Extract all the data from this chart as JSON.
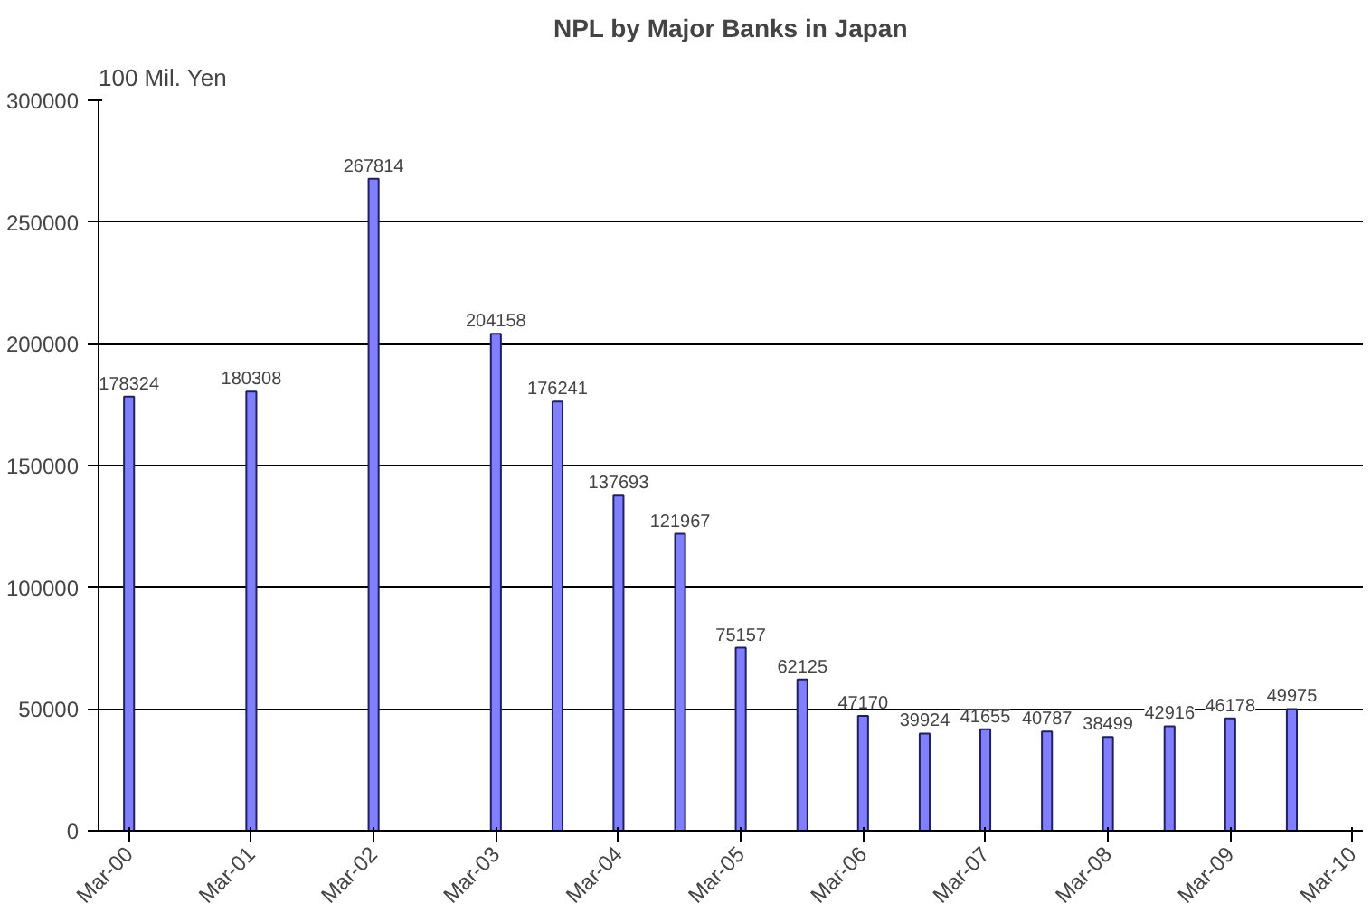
{
  "chart_data": {
    "type": "bar",
    "title": "NPL by Major Banks in Japan",
    "ylabel": "100 Mil. Yen",
    "x": [
      "2000-03",
      "2001-03",
      "2002-03",
      "2003-03",
      "2003-09",
      "2004-03",
      "2004-09",
      "2005-03",
      "2005-09",
      "2006-03",
      "2006-09",
      "2007-03",
      "2007-09",
      "2008-03",
      "2008-09",
      "2009-03",
      "2009-09"
    ],
    "values": [
      178324,
      180308,
      267814,
      204158,
      176241,
      137693,
      121967,
      75157,
      62125,
      47170,
      39924,
      41655,
      40787,
      38499,
      42916,
      46178,
      49975
    ],
    "color": "#8080ff",
    "data_labels": true,
    "grid": "y",
    "ylim": [
      0,
      300000
    ],
    "yticks": [
      0,
      50000,
      100000,
      150000,
      200000,
      250000,
      300000
    ],
    "xlim": [
      "1999-12",
      "2010-04"
    ],
    "xticks": [
      {
        "value": "2000-03",
        "label": "Mar-00"
      },
      {
        "value": "2001-03",
        "label": "Mar-01"
      },
      {
        "value": "2002-03",
        "label": "Mar-02"
      },
      {
        "value": "2003-03",
        "label": "Mar-03"
      },
      {
        "value": "2004-03",
        "label": "Mar-04"
      },
      {
        "value": "2005-03",
        "label": "Mar-05"
      },
      {
        "value": "2006-03",
        "label": "Mar-06"
      },
      {
        "value": "2007-03",
        "label": "Mar-07"
      },
      {
        "value": "2008-03",
        "label": "Mar-08"
      },
      {
        "value": "2009-03",
        "label": "Mar-09"
      },
      {
        "value": "2010-03",
        "label": "Mar-10"
      }
    ]
  }
}
